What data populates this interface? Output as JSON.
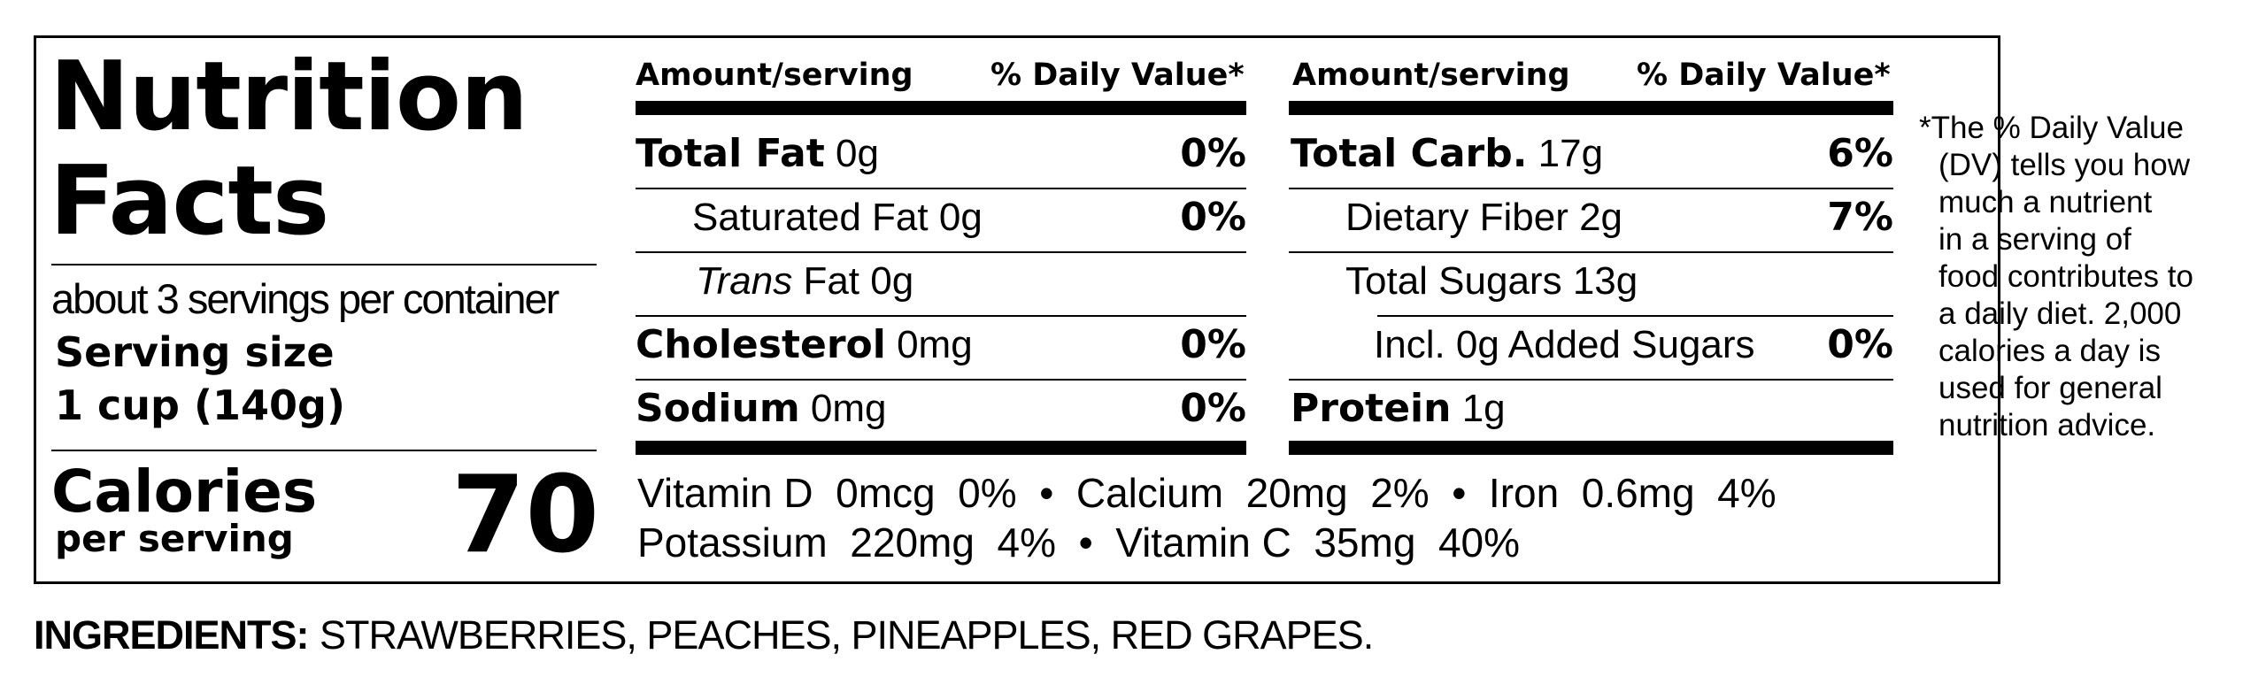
{
  "title": {
    "line1": "Nutrition",
    "line2": "Facts"
  },
  "servings_per_container": "about 3 servings per container",
  "serving_size": {
    "label": "Serving size",
    "value": "1 cup (140g)"
  },
  "calories": {
    "label": "Calories",
    "sublabel": "per serving",
    "value": "70"
  },
  "table_headers": {
    "left": {
      "amount": "Amount/serving",
      "dv": "% Daily Value*"
    },
    "right": {
      "amount": "Amount/serving",
      "dv": "% Daily Value*"
    }
  },
  "left_rows": [
    {
      "name": "Total Fat",
      "amount": "0g",
      "dv": "0%"
    },
    {
      "name": "Saturated Fat",
      "amount": "0g",
      "dv": "0%"
    },
    {
      "name": "Trans",
      "suffix": "Fat",
      "amount": "0g",
      "dv": ""
    },
    {
      "name": "Cholesterol",
      "amount": "0mg",
      "dv": "0%"
    },
    {
      "name": "Sodium",
      "amount": "0mg",
      "dv": "0%"
    }
  ],
  "right_rows": [
    {
      "name": "Total Carb.",
      "amount": "17g",
      "dv": "6%"
    },
    {
      "name": "Dietary Fiber",
      "amount": "2g",
      "dv": "7%"
    },
    {
      "name": "Total Sugars",
      "amount": "13g",
      "dv": ""
    },
    {
      "name": "Incl. 0g Added Sugars",
      "amount": "",
      "dv": "0%"
    },
    {
      "name": "Protein",
      "amount": "1g",
      "dv": ""
    }
  ],
  "vitamins": {
    "line1": "Vitamin D  0mcg  0%  •  Calcium  20mg  2%  •  Iron  0.6mg  4%",
    "line2": "Potassium  220mg  4%  •  Vitamin C  35mg  40%"
  },
  "footnote": {
    "lines": [
      "*The % Daily Value",
      "(DV) tells you how",
      "much a nutrient",
      "in a serving of",
      "food contributes to",
      "a daily diet. 2,000",
      "calories a day is",
      "used for general",
      "nutrition advice."
    ]
  },
  "ingredients": {
    "label": "INGREDIENTS:",
    "text": "STRAWBERRIES, PEACHES, PINEAPPLES, RED GRAPES."
  }
}
